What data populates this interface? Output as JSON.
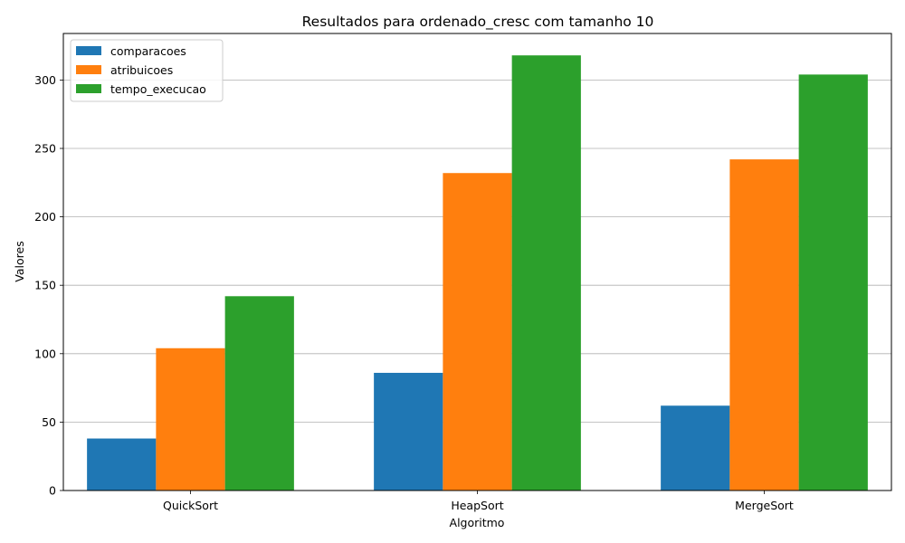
{
  "chart_data": {
    "type": "bar",
    "title": "Resultados para ordenado_cresc com tamanho 10",
    "xlabel": "Algoritmo",
    "ylabel": "Valores",
    "categories": [
      "QuickSort",
      "HeapSort",
      "MergeSort"
    ],
    "series": [
      {
        "name": "comparacoes",
        "color": "#1f77b4",
        "values": [
          38,
          86,
          62
        ]
      },
      {
        "name": "atribuicoes",
        "color": "#ff7f0e",
        "values": [
          104,
          232,
          242
        ]
      },
      {
        "name": "tempo_execucao",
        "color": "#2ca02c",
        "values": [
          142,
          318,
          304
        ]
      }
    ],
    "ylim": [
      0,
      334
    ],
    "yticks": [
      0,
      50,
      100,
      150,
      200,
      250,
      300
    ],
    "grid": "horizontal",
    "legend_position": "top-left"
  }
}
